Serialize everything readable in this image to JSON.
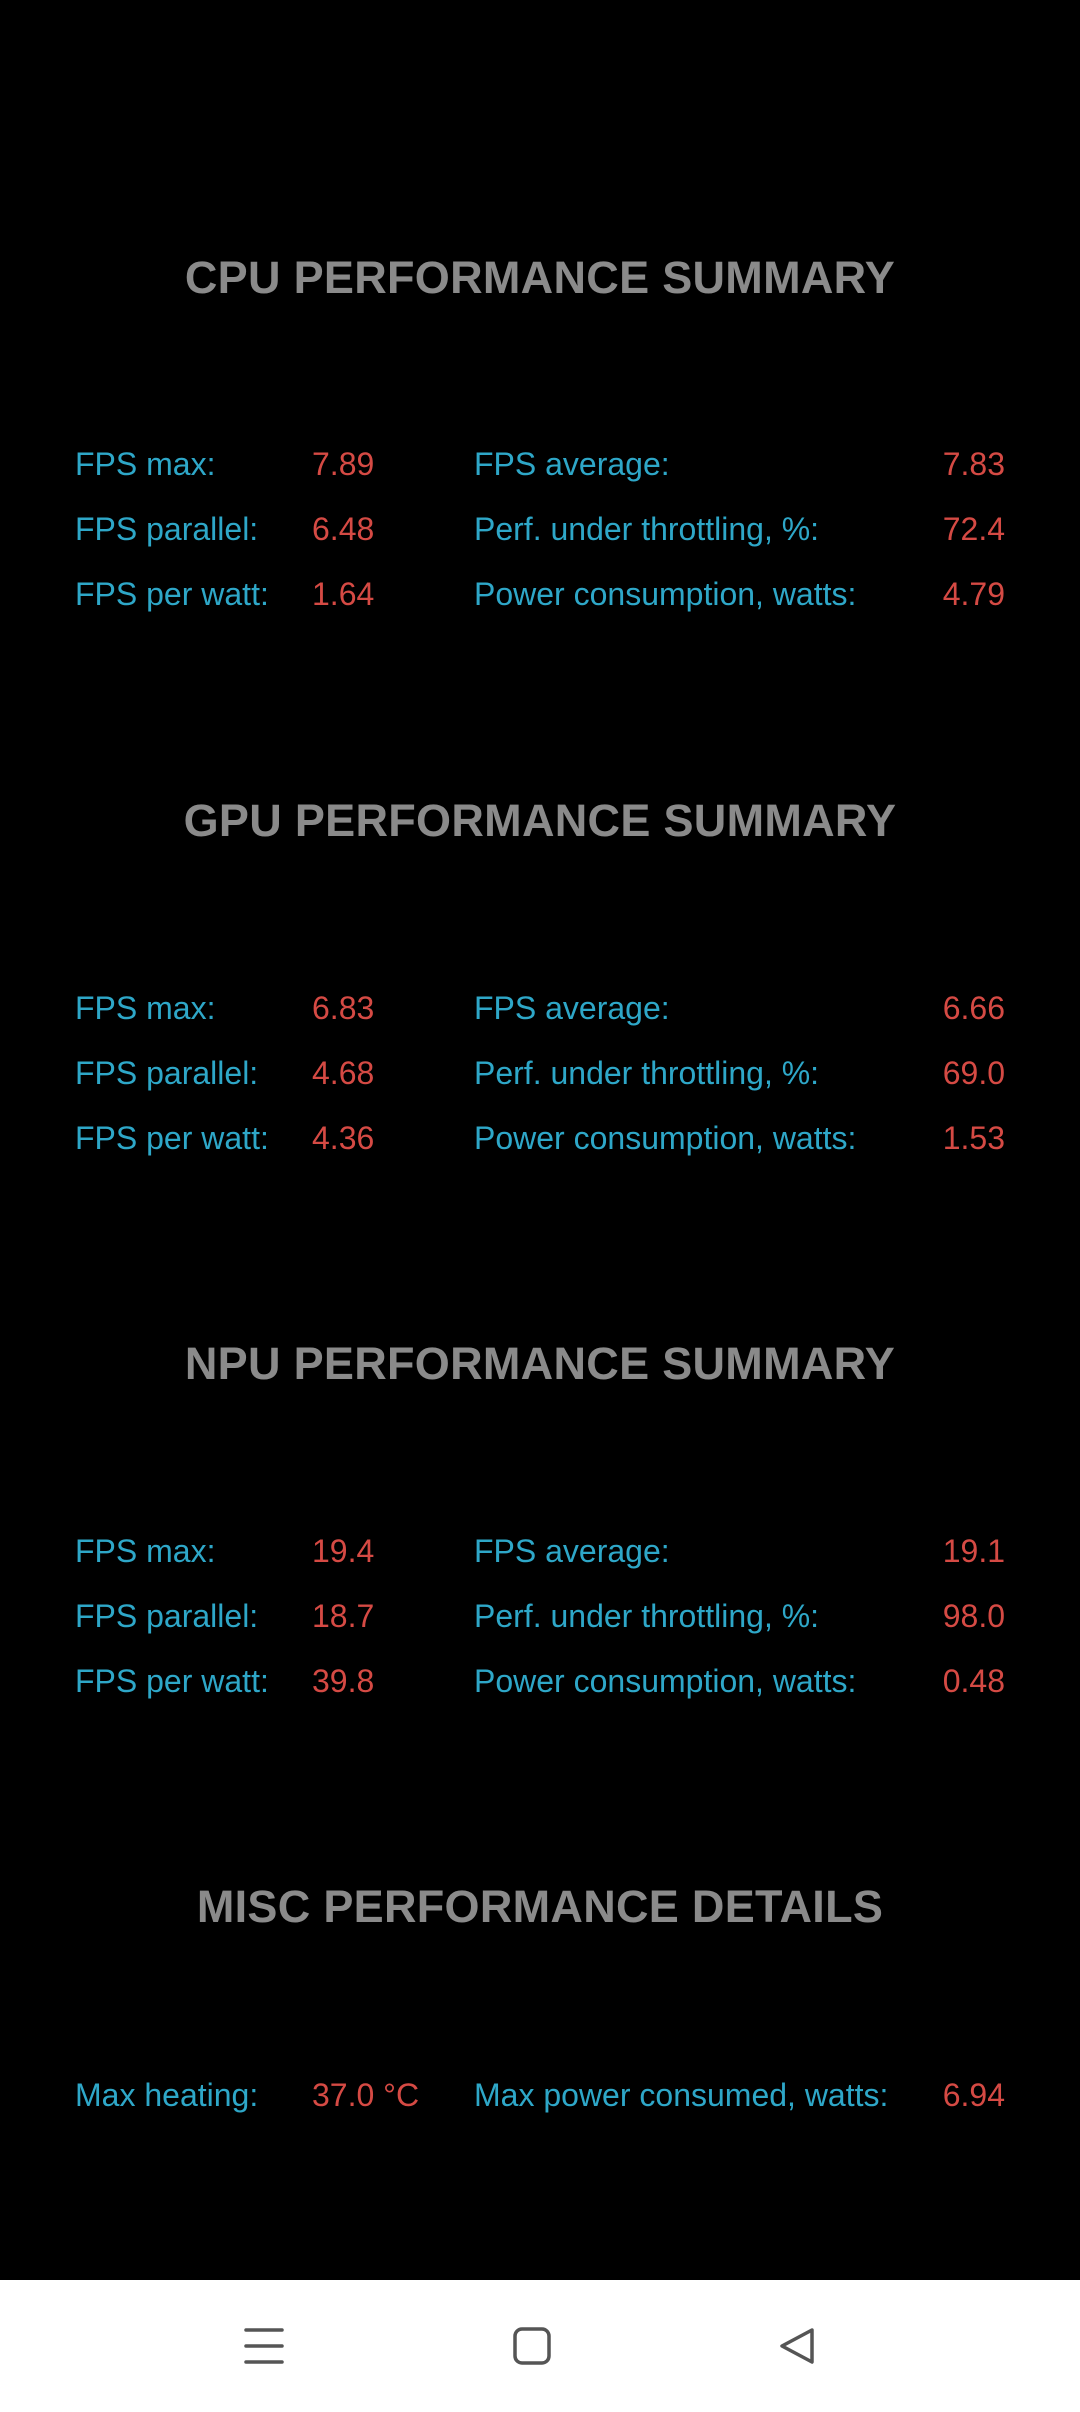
{
  "sections": [
    {
      "title": "CPU PERFORMANCE SUMMARY",
      "rows": [
        {
          "label_left": "FPS max:",
          "value_left": "7.89",
          "label_right": "FPS average:",
          "value_right": "7.83"
        },
        {
          "label_left": "FPS parallel:",
          "value_left": "6.48",
          "label_right": "Perf. under throttling, %:",
          "value_right": "72.4"
        },
        {
          "label_left": "FPS per watt:",
          "value_left": "1.64",
          "label_right": "Power consumption, watts:",
          "value_right": "4.79"
        }
      ]
    },
    {
      "title": "GPU PERFORMANCE SUMMARY",
      "rows": [
        {
          "label_left": "FPS max:",
          "value_left": "6.83",
          "label_right": "FPS average:",
          "value_right": "6.66"
        },
        {
          "label_left": "FPS parallel:",
          "value_left": "4.68",
          "label_right": "Perf. under throttling, %:",
          "value_right": "69.0"
        },
        {
          "label_left": "FPS per watt:",
          "value_left": "4.36",
          "label_right": "Power consumption, watts:",
          "value_right": "1.53"
        }
      ]
    },
    {
      "title": "NPU PERFORMANCE SUMMARY",
      "rows": [
        {
          "label_left": "FPS max:",
          "value_left": "19.4",
          "label_right": "FPS average:",
          "value_right": "19.1"
        },
        {
          "label_left": "FPS parallel:",
          "value_left": "18.7",
          "label_right": "Perf. under throttling, %:",
          "value_right": "98.0"
        },
        {
          "label_left": "FPS per watt:",
          "value_left": "39.8",
          "label_right": "Power consumption, watts:",
          "value_right": "0.48"
        }
      ]
    },
    {
      "title": "MISC PERFORMANCE DETAILS",
      "rows": [
        {
          "label_left": "Max heating:",
          "value_left": "37.0 °C",
          "label_right": "Max power consumed, watts:",
          "value_right": "6.94"
        }
      ]
    }
  ],
  "colors": {
    "background": "#000000",
    "title": "#8a8a8a",
    "label": "#2ea7c8",
    "value": "#d54a44",
    "navbar": "#ffffff",
    "nav_icon": "#555555"
  },
  "navbar": {
    "buttons": [
      {
        "name": "menu-button",
        "icon": "menu-icon"
      },
      {
        "name": "home-button",
        "icon": "home-square-icon"
      },
      {
        "name": "back-button",
        "icon": "back-triangle-icon"
      }
    ]
  }
}
